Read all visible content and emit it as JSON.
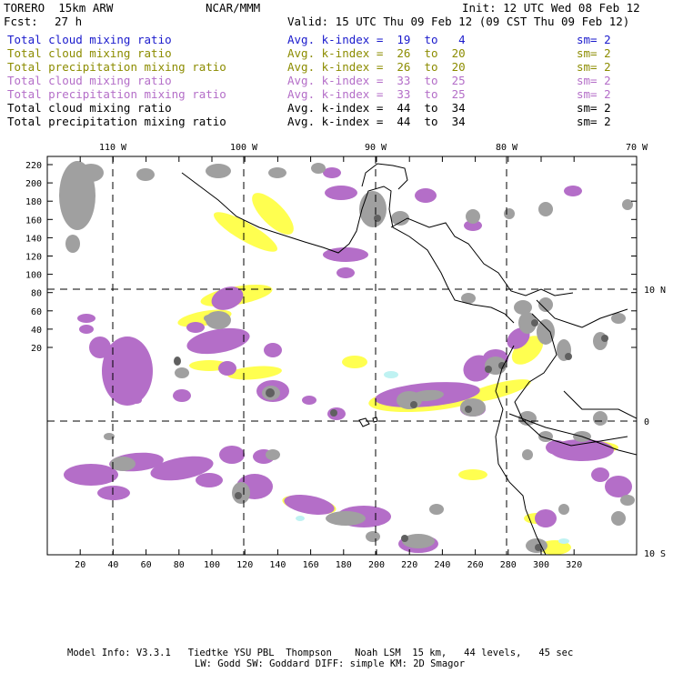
{
  "header": {
    "title": "TORERO  15km ARW",
    "center": "NCAR/MMM",
    "init": "Init: 12 UTC Wed 08 Feb 12",
    "fcst_label": "Fcst:",
    "fcst_value": "27 h",
    "valid": "Valid: 15 UTC Thu 09 Feb 12 (09 CST Thu 09 Feb 12)"
  },
  "legend": [
    {
      "name": "Total cloud mixing ratio",
      "index": "Avg. k-index =  19  to   4",
      "sm": "sm= 2",
      "color": "#1a1acc"
    },
    {
      "name": "Total cloud mixing ratio",
      "index": "Avg. k-index =  26  to  20",
      "sm": "sm= 2",
      "color": "#8c8c00"
    },
    {
      "name": "Total precipitation mixing ratio",
      "index": "Avg. k-index =  26  to  20",
      "sm": "sm= 2",
      "color": "#8c8c00"
    },
    {
      "name": "Total cloud mixing ratio",
      "index": "Avg. k-index =  33  to  25",
      "sm": "sm= 2",
      "color": "#b46ec8"
    },
    {
      "name": "Total precipitation mixing ratio",
      "index": "Avg. k-index =  33  to  25",
      "sm": "sm= 2",
      "color": "#b46ec8"
    },
    {
      "name": "Total cloud mixing ratio",
      "index": "Avg. k-index =  44  to  34",
      "sm": "sm= 2",
      "color": "#000000"
    },
    {
      "name": "Total precipitation mixing ratio",
      "index": "Avg. k-index =  44  to  34",
      "sm": "sm= 2",
      "color": "#000000"
    }
  ],
  "map": {
    "lon_labels": [
      "110 W",
      "100 W",
      "90 W",
      "80 W",
      "70 W"
    ],
    "lat_labels": [
      "10 N",
      "0",
      "10 S"
    ],
    "x_ticks": [
      "20",
      "40",
      "60",
      "80",
      "100",
      "120",
      "140",
      "160",
      "180",
      "200",
      "220",
      "240",
      "260",
      "280",
      "300",
      "320"
    ],
    "y_ticks": [
      "220",
      "200",
      "180",
      "160",
      "140",
      "120",
      "100",
      "80",
      "60",
      "40",
      "20"
    ],
    "colors": {
      "gray": "#a0a0a0",
      "dark": "#606060",
      "purple": "#b46ec8",
      "yellow": "#ffff50",
      "cyan": "#bff2f2"
    }
  },
  "footer": {
    "line1": "Model Info: V3.3.1   Tiedtke YSU PBL  Thompson    Noah LSM  15 km,   44 levels,   45 sec",
    "line2": "LW: Godd SW: Goddard DIFF: simple KM: 2D Smagor"
  }
}
